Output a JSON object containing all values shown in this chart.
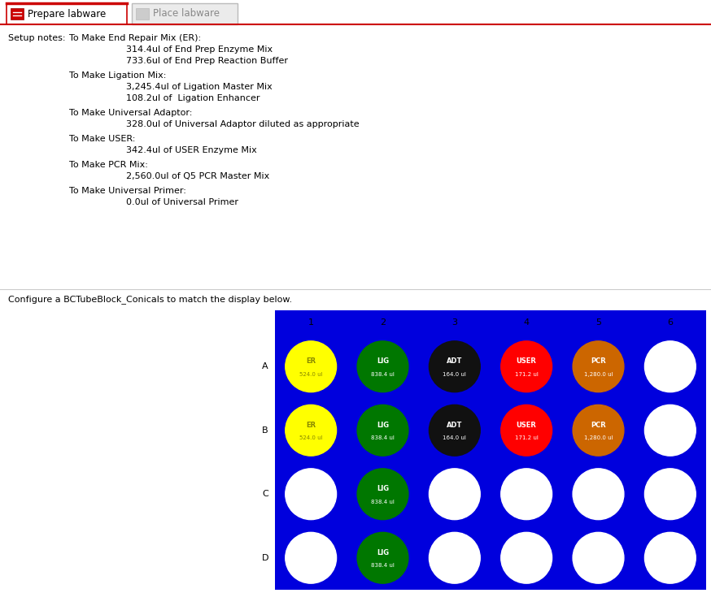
{
  "tab1_label": "Prepare labware",
  "tab2_label": "Place labware",
  "setup_notes_label": "Setup notes:",
  "setup_notes": [
    {
      "header": "To Make End Repair Mix (ER):",
      "lines": [
        "314.4ul of End Prep Enzyme Mix",
        "733.6ul of End Prep Reaction Buffer"
      ]
    },
    {
      "header": "To Make Ligation Mix:",
      "lines": [
        "3,245.4ul of Ligation Master Mix",
        "108.2ul of  Ligation Enhancer"
      ]
    },
    {
      "header": "To Make Universal Adaptor:",
      "lines": [
        "328.0ul of Universal Adaptor diluted as appropriate"
      ]
    },
    {
      "header": "To Make USER:",
      "lines": [
        "342.4ul of USER Enzyme Mix"
      ]
    },
    {
      "header": "To Make PCR Mix:",
      "lines": [
        "2,560.0ul of Q5 PCR Master Mix"
      ]
    },
    {
      "header": "To Make Universal Primer:",
      "lines": [
        "0.0ul of Universal Primer"
      ]
    }
  ],
  "configure_label": "Configure a BCTubeBlock_Conicals to match the display below.",
  "col_labels": [
    "1",
    "2",
    "3",
    "4",
    "5",
    "6"
  ],
  "row_labels": [
    "A",
    "B",
    "C",
    "D"
  ],
  "plate_bg": "#0000DD",
  "wells": [
    {
      "row": 0,
      "col": 0,
      "color": "#FFFF00",
      "label": "ER",
      "volume": "524.0 ul",
      "text_color": "#888800"
    },
    {
      "row": 0,
      "col": 1,
      "color": "#007700",
      "label": "LIG",
      "volume": "838.4 ul",
      "text_color": "#FFFFFF"
    },
    {
      "row": 0,
      "col": 2,
      "color": "#111111",
      "label": "ADT",
      "volume": "164.0 ul",
      "text_color": "#FFFFFF"
    },
    {
      "row": 0,
      "col": 3,
      "color": "#FF0000",
      "label": "USER",
      "volume": "171.2 ul",
      "text_color": "#FFFFFF"
    },
    {
      "row": 0,
      "col": 4,
      "color": "#CC6600",
      "label": "PCR",
      "volume": "1,280.0 ul",
      "text_color": "#FFFFFF"
    },
    {
      "row": 0,
      "col": 5,
      "color": "#FFFFFF",
      "label": "",
      "volume": "",
      "text_color": "#000000"
    },
    {
      "row": 1,
      "col": 0,
      "color": "#FFFF00",
      "label": "ER",
      "volume": "524.0 ul",
      "text_color": "#888800"
    },
    {
      "row": 1,
      "col": 1,
      "color": "#007700",
      "label": "LIG",
      "volume": "838.4 ul",
      "text_color": "#FFFFFF"
    },
    {
      "row": 1,
      "col": 2,
      "color": "#111111",
      "label": "ADT",
      "volume": "164.0 ul",
      "text_color": "#FFFFFF"
    },
    {
      "row": 1,
      "col": 3,
      "color": "#FF0000",
      "label": "USER",
      "volume": "171.2 ul",
      "text_color": "#FFFFFF"
    },
    {
      "row": 1,
      "col": 4,
      "color": "#CC6600",
      "label": "PCR",
      "volume": "1,280.0 ul",
      "text_color": "#FFFFFF"
    },
    {
      "row": 1,
      "col": 5,
      "color": "#FFFFFF",
      "label": "",
      "volume": "",
      "text_color": "#000000"
    },
    {
      "row": 2,
      "col": 0,
      "color": "#FFFFFF",
      "label": "",
      "volume": "",
      "text_color": "#000000"
    },
    {
      "row": 2,
      "col": 1,
      "color": "#007700",
      "label": "LIG",
      "volume": "838.4 ul",
      "text_color": "#FFFFFF"
    },
    {
      "row": 2,
      "col": 2,
      "color": "#FFFFFF",
      "label": "",
      "volume": "",
      "text_color": "#000000"
    },
    {
      "row": 2,
      "col": 3,
      "color": "#FFFFFF",
      "label": "",
      "volume": "",
      "text_color": "#000000"
    },
    {
      "row": 2,
      "col": 4,
      "color": "#FFFFFF",
      "label": "",
      "volume": "",
      "text_color": "#000000"
    },
    {
      "row": 2,
      "col": 5,
      "color": "#FFFFFF",
      "label": "",
      "volume": "",
      "text_color": "#000000"
    },
    {
      "row": 3,
      "col": 0,
      "color": "#FFFFFF",
      "label": "",
      "volume": "",
      "text_color": "#000000"
    },
    {
      "row": 3,
      "col": 1,
      "color": "#007700",
      "label": "LIG",
      "volume": "838.4 ul",
      "text_color": "#FFFFFF"
    },
    {
      "row": 3,
      "col": 2,
      "color": "#FFFFFF",
      "label": "",
      "volume": "",
      "text_color": "#000000"
    },
    {
      "row": 3,
      "col": 3,
      "color": "#FFFFFF",
      "label": "",
      "volume": "",
      "text_color": "#000000"
    },
    {
      "row": 3,
      "col": 4,
      "color": "#FFFFFF",
      "label": "",
      "volume": "",
      "text_color": "#000000"
    },
    {
      "row": 3,
      "col": 5,
      "color": "#FFFFFF",
      "label": "",
      "volume": "",
      "text_color": "#000000"
    }
  ],
  "fig_width": 8.74,
  "fig_height": 7.3,
  "dpi": 100
}
